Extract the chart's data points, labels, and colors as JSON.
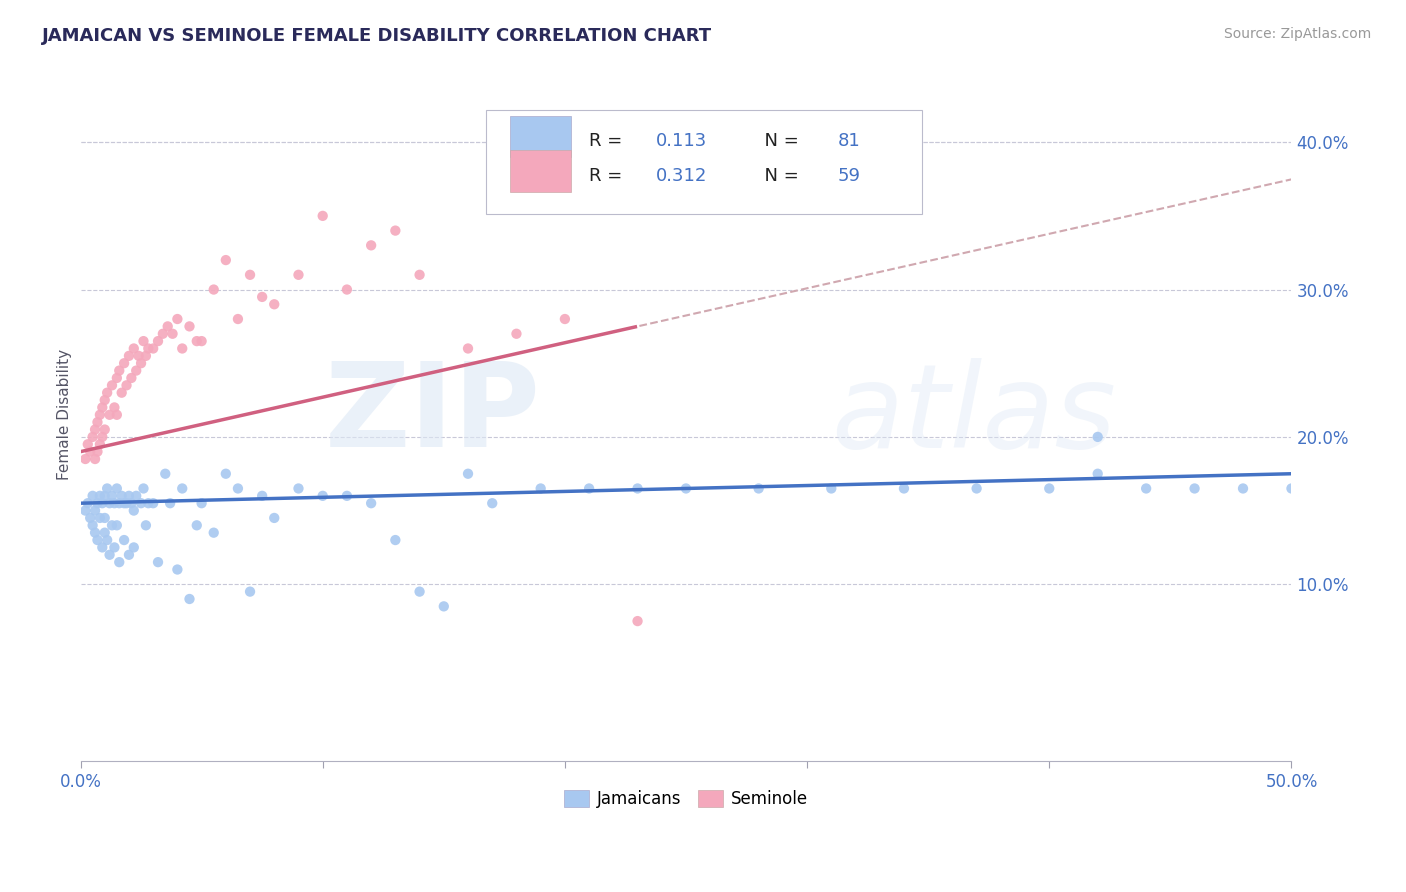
{
  "title": "JAMAICAN VS SEMINOLE FEMALE DISABILITY CORRELATION CHART",
  "source": "Source: ZipAtlas.com",
  "ylabel": "Female Disability",
  "xlim": [
    0.0,
    0.5
  ],
  "ylim": [
    -0.02,
    0.45
  ],
  "yticks": [
    0.1,
    0.2,
    0.3,
    0.4
  ],
  "ytick_labels": [
    "10.0%",
    "20.0%",
    "30.0%",
    "40.0%"
  ],
  "xticks": [
    0.0,
    0.1,
    0.2,
    0.3,
    0.4,
    0.5
  ],
  "xtick_labels": [
    "0.0%",
    "",
    "",
    "",
    "",
    "50.0%"
  ],
  "legend_entries": [
    "Jamaicans",
    "Seminole"
  ],
  "jamaican_color": "#a8c8f0",
  "seminole_color": "#f4a8bc",
  "jamaican_line_color": "#4472c4",
  "seminole_line_color": "#d06080",
  "seminole_dashed_color": "#d0a8b0",
  "R_jamaican": 0.113,
  "N_jamaican": 81,
  "R_seminole": 0.312,
  "N_seminole": 59,
  "jamaican_x": [
    0.002,
    0.003,
    0.004,
    0.005,
    0.005,
    0.006,
    0.006,
    0.007,
    0.007,
    0.008,
    0.008,
    0.009,
    0.009,
    0.01,
    0.01,
    0.01,
    0.011,
    0.011,
    0.012,
    0.012,
    0.013,
    0.013,
    0.014,
    0.014,
    0.015,
    0.015,
    0.016,
    0.016,
    0.017,
    0.018,
    0.018,
    0.019,
    0.02,
    0.02,
    0.021,
    0.022,
    0.022,
    0.023,
    0.025,
    0.026,
    0.027,
    0.028,
    0.03,
    0.032,
    0.035,
    0.037,
    0.04,
    0.042,
    0.045,
    0.048,
    0.05,
    0.055,
    0.06,
    0.065,
    0.07,
    0.075,
    0.08,
    0.09,
    0.1,
    0.11,
    0.12,
    0.13,
    0.14,
    0.15,
    0.16,
    0.17,
    0.19,
    0.21,
    0.23,
    0.25,
    0.28,
    0.31,
    0.34,
    0.37,
    0.4,
    0.42,
    0.44,
    0.46,
    0.48,
    0.5,
    0.42
  ],
  "jamaican_y": [
    0.15,
    0.155,
    0.145,
    0.16,
    0.14,
    0.15,
    0.135,
    0.155,
    0.13,
    0.16,
    0.145,
    0.155,
    0.125,
    0.16,
    0.145,
    0.135,
    0.165,
    0.13,
    0.155,
    0.12,
    0.16,
    0.14,
    0.155,
    0.125,
    0.165,
    0.14,
    0.155,
    0.115,
    0.16,
    0.155,
    0.13,
    0.155,
    0.16,
    0.12,
    0.155,
    0.15,
    0.125,
    0.16,
    0.155,
    0.165,
    0.14,
    0.155,
    0.155,
    0.115,
    0.175,
    0.155,
    0.11,
    0.165,
    0.09,
    0.14,
    0.155,
    0.135,
    0.175,
    0.165,
    0.095,
    0.16,
    0.145,
    0.165,
    0.16,
    0.16,
    0.155,
    0.13,
    0.095,
    0.085,
    0.175,
    0.155,
    0.165,
    0.165,
    0.165,
    0.165,
    0.165,
    0.165,
    0.165,
    0.165,
    0.165,
    0.175,
    0.165,
    0.165,
    0.165,
    0.165,
    0.2
  ],
  "seminole_x": [
    0.002,
    0.003,
    0.004,
    0.005,
    0.006,
    0.006,
    0.007,
    0.007,
    0.008,
    0.008,
    0.009,
    0.009,
    0.01,
    0.01,
    0.011,
    0.012,
    0.013,
    0.014,
    0.015,
    0.015,
    0.016,
    0.017,
    0.018,
    0.019,
    0.02,
    0.021,
    0.022,
    0.023,
    0.024,
    0.025,
    0.026,
    0.027,
    0.028,
    0.03,
    0.032,
    0.034,
    0.036,
    0.038,
    0.04,
    0.042,
    0.045,
    0.048,
    0.05,
    0.055,
    0.06,
    0.065,
    0.07,
    0.075,
    0.08,
    0.09,
    0.1,
    0.11,
    0.12,
    0.13,
    0.14,
    0.16,
    0.18,
    0.2,
    0.23
  ],
  "seminole_y": [
    0.185,
    0.195,
    0.19,
    0.2,
    0.205,
    0.185,
    0.21,
    0.19,
    0.215,
    0.195,
    0.22,
    0.2,
    0.225,
    0.205,
    0.23,
    0.215,
    0.235,
    0.22,
    0.24,
    0.215,
    0.245,
    0.23,
    0.25,
    0.235,
    0.255,
    0.24,
    0.26,
    0.245,
    0.255,
    0.25,
    0.265,
    0.255,
    0.26,
    0.26,
    0.265,
    0.27,
    0.275,
    0.27,
    0.28,
    0.26,
    0.275,
    0.265,
    0.265,
    0.3,
    0.32,
    0.28,
    0.31,
    0.295,
    0.29,
    0.31,
    0.35,
    0.3,
    0.33,
    0.34,
    0.31,
    0.26,
    0.27,
    0.28,
    0.075
  ]
}
